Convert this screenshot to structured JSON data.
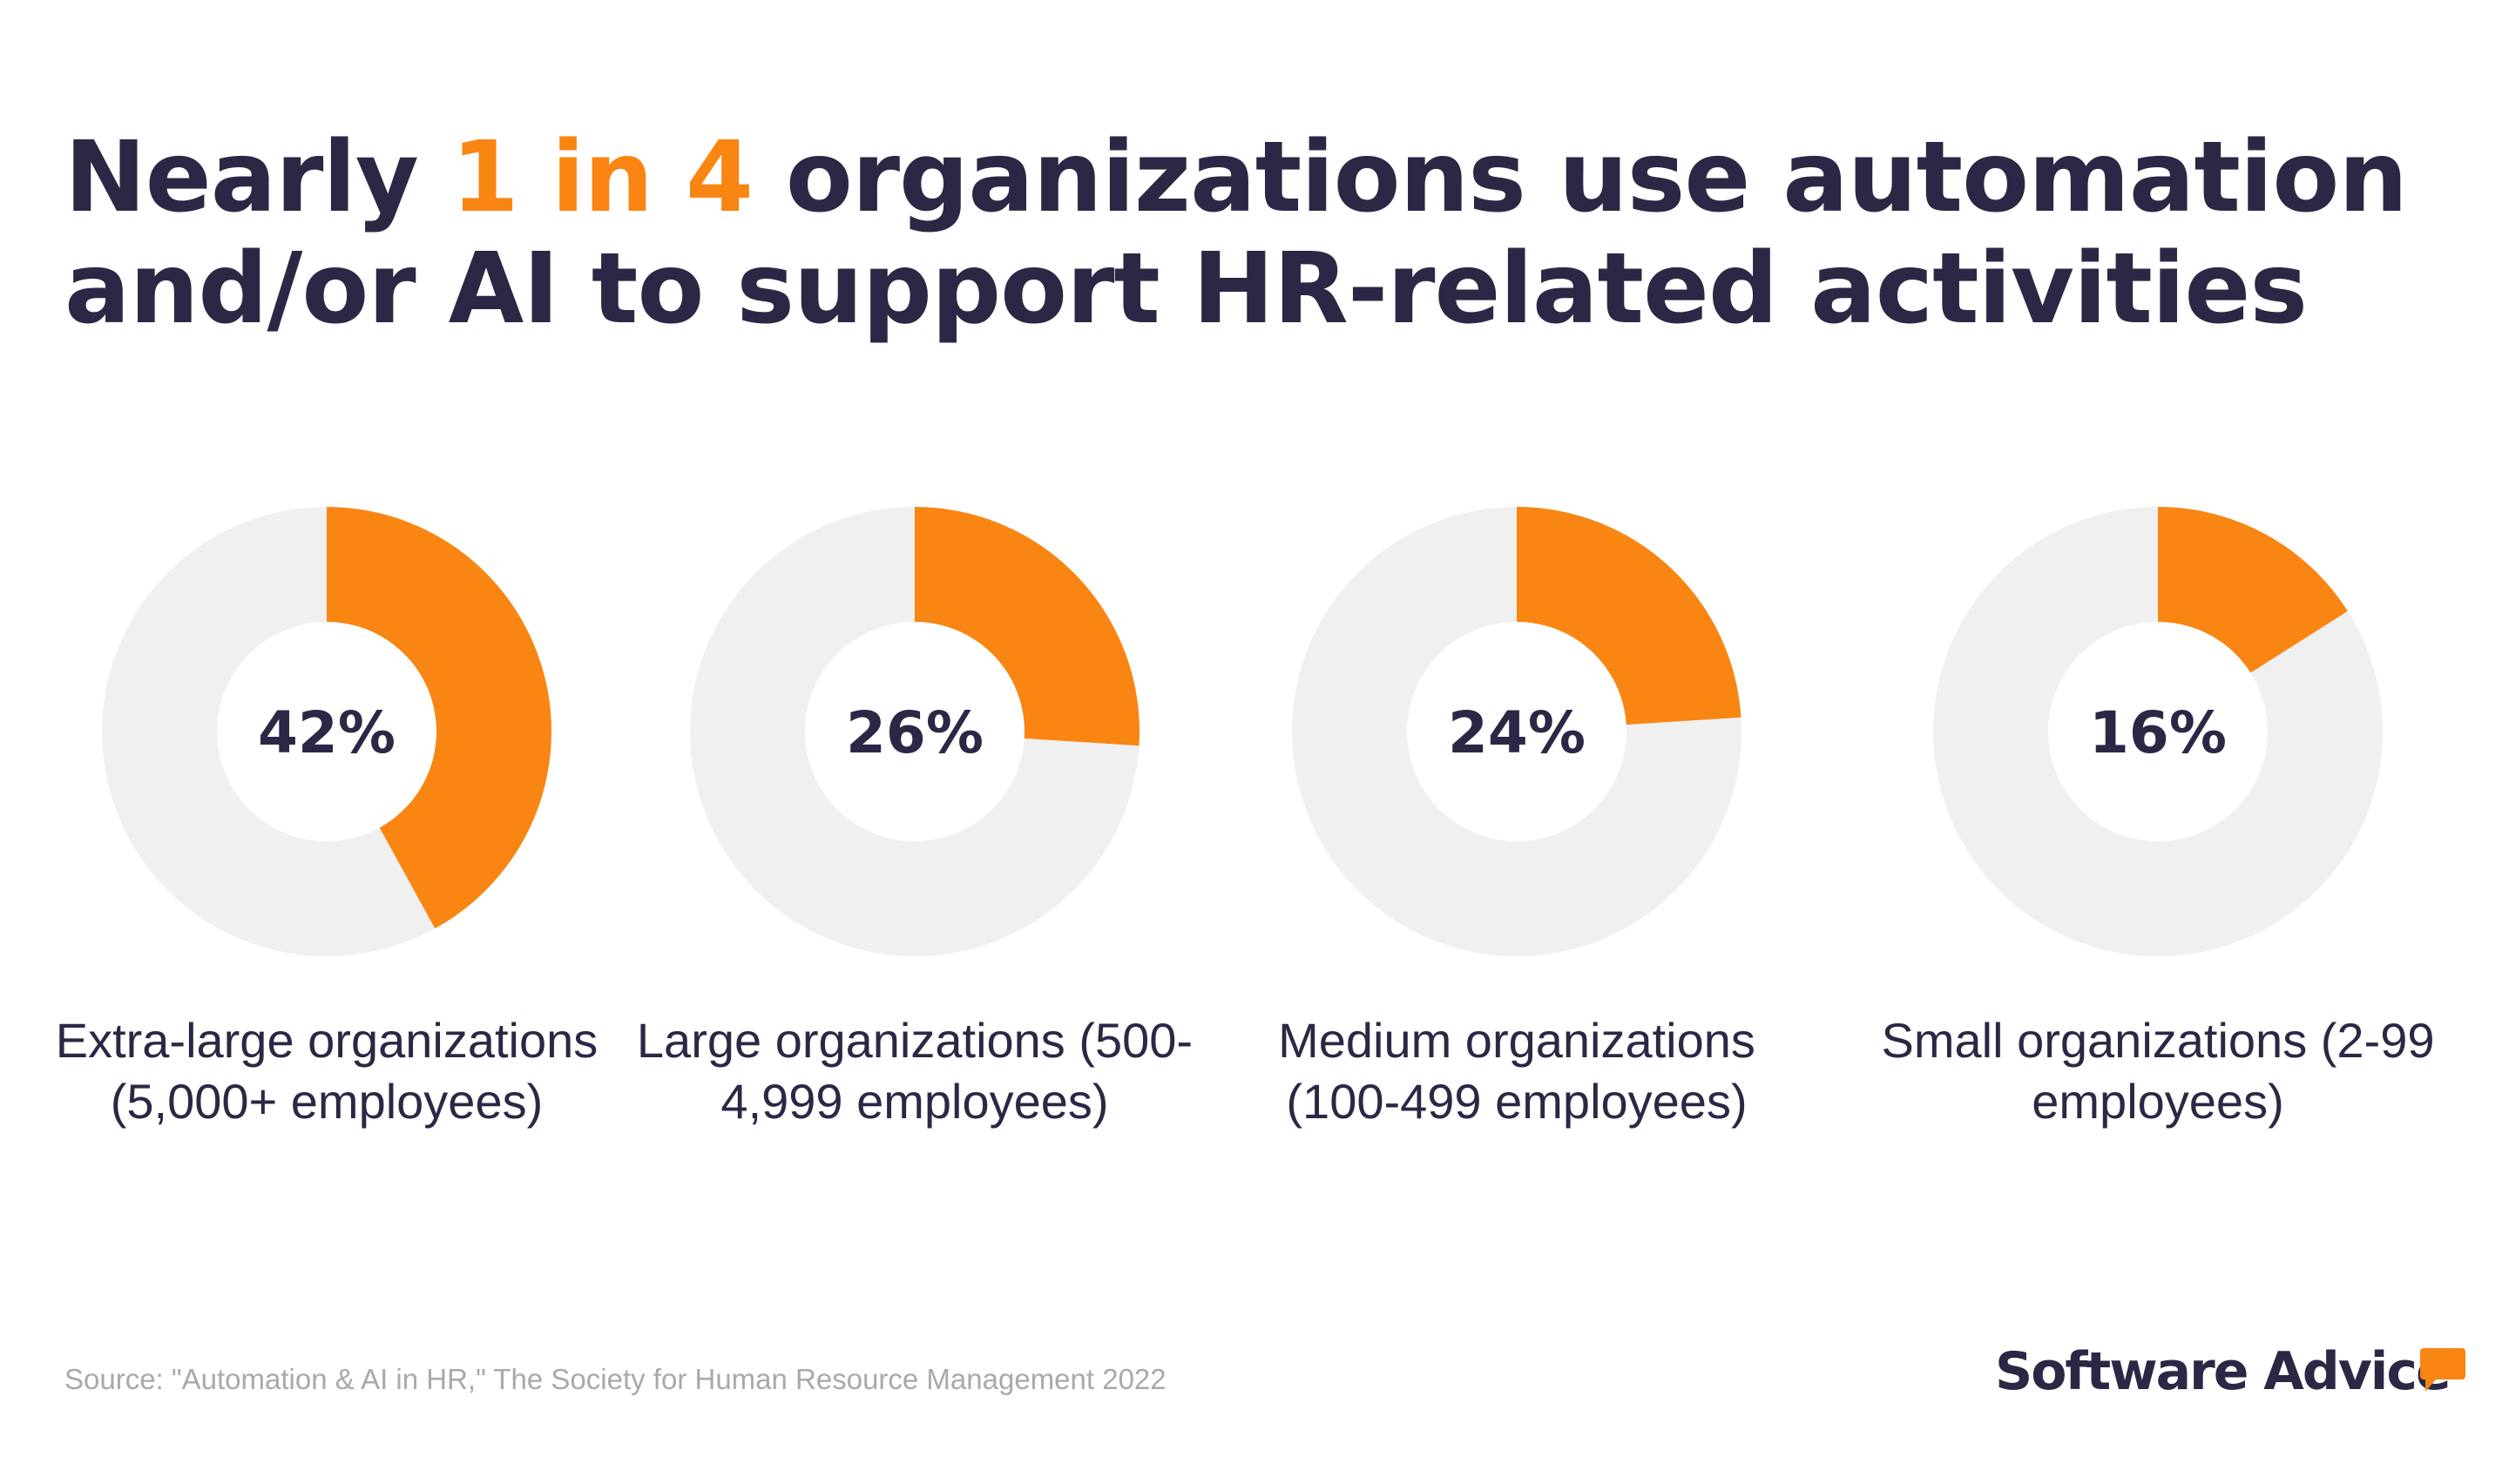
{
  "title": {
    "pre": "Nearly ",
    "highlight": "1 in 4",
    "post": " organizations use automation and/or AI to support HR-related activities"
  },
  "colors": {
    "accent": "#f98512",
    "track": "#f0f0f0",
    "text": "#2b2845"
  },
  "chart_data": {
    "type": "pie",
    "variant": "donut",
    "title": "Nearly 1 in 4 organizations use automation and/or AI to support HR-related activities",
    "categories": [
      "Extra-large organizations (5,000+ employees)",
      "Large organizations (500-4,999 employees)",
      "Medium organizations (100-499 employees)",
      "Small organizations (2-99 employees)"
    ],
    "values": [
      42,
      26,
      24,
      16
    ],
    "value_labels": [
      "42%",
      "26%",
      "24%",
      "16%"
    ],
    "unit": "%"
  },
  "source": "Source: \"Automation & AI in HR,\" The Society for Human Resource Management 2022",
  "logo": "Software Advice"
}
